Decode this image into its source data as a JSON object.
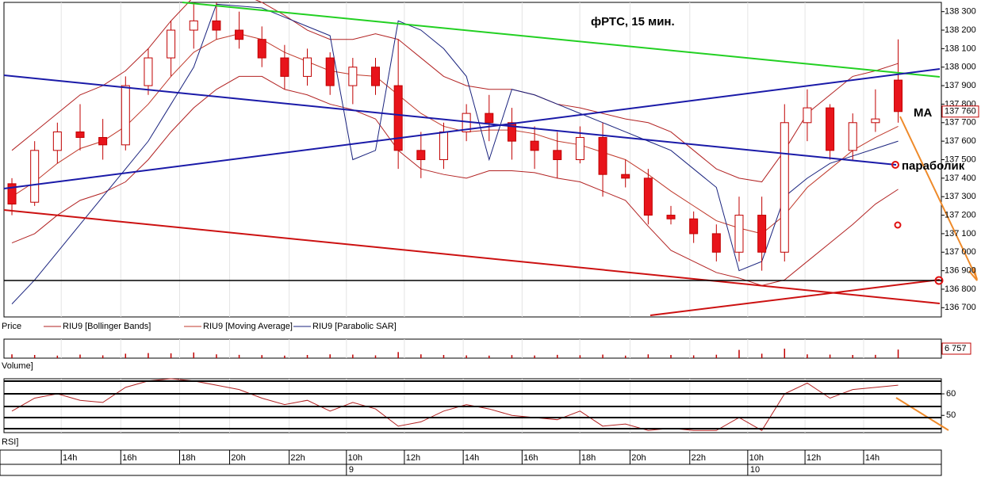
{
  "chart_data": [
    {
      "type": "candlestick",
      "title": "фРТС,  15 мин.",
      "ylabel": "Price",
      "x": [
        0,
        1,
        2,
        3,
        4,
        5,
        6,
        7,
        8,
        9,
        10,
        11,
        12,
        13,
        14,
        15,
        16,
        17,
        18,
        19,
        20,
        21,
        22,
        23,
        24,
        25,
        26,
        27,
        28,
        29,
        30,
        31,
        32,
        33,
        34,
        35,
        36,
        37,
        38,
        39
      ],
      "open": [
        137370,
        137270,
        137550,
        137650,
        137620,
        137580,
        137900,
        138050,
        138200,
        138250,
        138200,
        138150,
        138050,
        137950,
        138050,
        137900,
        138000,
        137900,
        137550,
        137500,
        137650,
        137750,
        137700,
        137600,
        137550,
        137500,
        137620,
        137420,
        137400,
        137200,
        137180,
        137100,
        137000,
        137200,
        137000,
        137700,
        137780,
        137550,
        137700,
        137930
      ],
      "high": [
        137400,
        137600,
        137700,
        137800,
        137720,
        137950,
        138100,
        138250,
        138350,
        138350,
        138300,
        138220,
        138120,
        138100,
        138080,
        138050,
        138050,
        138150,
        137650,
        137700,
        137800,
        137850,
        137780,
        137680,
        137650,
        137680,
        137700,
        137500,
        137450,
        137250,
        137220,
        137150,
        137300,
        137300,
        137800,
        137880,
        137800,
        137750,
        137880,
        138150
      ],
      "low": [
        137200,
        137250,
        137480,
        137550,
        137500,
        137550,
        137850,
        137950,
        138100,
        138150,
        138100,
        138000,
        137880,
        137900,
        137850,
        137800,
        137850,
        137450,
        137400,
        137450,
        137600,
        137600,
        137500,
        137450,
        137400,
        137480,
        137300,
        137350,
        137150,
        137150,
        137050,
        136950,
        136950,
        136900,
        136950,
        137600,
        137500,
        137500,
        137650,
        137700
      ],
      "close": [
        137260,
        137550,
        137650,
        137620,
        137580,
        137900,
        138050,
        138200,
        138250,
        138200,
        138150,
        138050,
        137950,
        138050,
        137900,
        138000,
        137900,
        137550,
        137500,
        137650,
        137750,
        137700,
        137600,
        137550,
        137500,
        137620,
        137420,
        137400,
        137200,
        137180,
        137100,
        137000,
        137200,
        137000,
        137700,
        137780,
        137550,
        137700,
        137720,
        137760
      ],
      "up_color": "#ffffff",
      "down_color": "#e8141b",
      "edge_color": "#c00000",
      "series": [
        {
          "name": "RIU9 [Bollinger Bands]",
          "color": "#b22222",
          "upper": [
            137550,
            137650,
            137750,
            137850,
            137900,
            137980,
            138100,
            138250,
            138380,
            138420,
            138400,
            138350,
            138280,
            138200,
            138150,
            138150,
            138180,
            138150,
            138050,
            137950,
            137900,
            137880,
            137880,
            137850,
            137800,
            137780,
            137750,
            137720,
            137700,
            137650,
            137550,
            137450,
            137400,
            137380,
            137550,
            137750,
            137850,
            137950,
            137980,
            138020
          ],
          "lower": [
            137050,
            137100,
            137200,
            137280,
            137320,
            137380,
            137500,
            137650,
            137780,
            137880,
            137950,
            137950,
            137880,
            137850,
            137800,
            137770,
            137720,
            137550,
            137450,
            137420,
            137400,
            137440,
            137440,
            137430,
            137400,
            137380,
            137330,
            137280,
            137140,
            137010,
            136950,
            136890,
            136860,
            136820,
            136850,
            136950,
            137050,
            137150,
            137260,
            137340
          ]
        },
        {
          "name": "RIU9 [Moving Average]",
          "color": "#c0392b",
          "values": [
            137300,
            137380,
            137480,
            137560,
            137600,
            137680,
            137800,
            137950,
            138080,
            138150,
            138180,
            138150,
            138080,
            138030,
            137980,
            137960,
            137950,
            137850,
            137750,
            137680,
            137650,
            137660,
            137660,
            137640,
            137600,
            137580,
            137540,
            137500,
            137420,
            137330,
            137250,
            137170,
            137130,
            137100,
            137200,
            137350,
            137450,
            137550,
            137620,
            137680
          ]
        },
        {
          "name": "RIU9 [Parabolic SAR]",
          "color": "#1a237e",
          "values": [
            136720,
            136850,
            137000,
            137150,
            137300,
            137450,
            137600,
            137800,
            138000,
            138340,
            138330,
            138320,
            138270,
            138220,
            138170,
            137500,
            137550,
            138250,
            138200,
            138100,
            137950,
            137500,
            137880,
            137850,
            137800,
            137750,
            137700,
            137650,
            137600,
            137550,
            137450,
            137350,
            136900,
            136950,
            137300,
            137400,
            137480,
            137520,
            137560,
            137600
          ]
        }
      ],
      "last_value": {
        "value": 137760,
        "label": "137 760"
      },
      "ylim": [
        136650,
        138350
      ],
      "yticks": [
        {
          "value": 138300,
          "label": "138 300"
        },
        {
          "value": 138200,
          "label": "138 200"
        },
        {
          "value": 138100,
          "label": "138 100"
        },
        {
          "value": 138000,
          "label": "138 000"
        },
        {
          "value": 137900,
          "label": "137 900"
        },
        {
          "value": 137800,
          "label": "137 800"
        },
        {
          "value": 137700,
          "label": "137 700"
        },
        {
          "value": 137600,
          "label": "137 600"
        },
        {
          "value": 137500,
          "label": "137 500"
        },
        {
          "value": 137400,
          "label": "137 400"
        },
        {
          "value": 137300,
          "label": "137 300"
        },
        {
          "value": 137200,
          "label": "137 200"
        },
        {
          "value": 137100,
          "label": "137 100"
        },
        {
          "value": 137000,
          "label": "137 000"
        },
        {
          "value": 136900,
          "label": "136 900"
        },
        {
          "value": 136800,
          "label": "136 800"
        },
        {
          "value": 136700,
          "label": "136 700"
        }
      ],
      "xlim": [
        -0.35,
        40.9
      ],
      "xticks": [
        {
          "value": 2.17,
          "label": "14h"
        },
        {
          "value": 4.79,
          "label": "16h"
        },
        {
          "value": 7.38,
          "label": "18h"
        },
        {
          "value": 9.58,
          "label": "20h"
        },
        {
          "value": 12.2,
          "label": "22h"
        },
        {
          "value": 14.72,
          "label": "10h"
        },
        {
          "value": 17.27,
          "label": "12h"
        },
        {
          "value": 19.86,
          "label": "14h"
        },
        {
          "value": 22.45,
          "label": "16h"
        },
        {
          "value": 24.99,
          "label": "18h"
        },
        {
          "value": 27.2,
          "label": "20h"
        },
        {
          "value": 29.83,
          "label": "22h"
        },
        {
          "value": 32.38,
          "label": "10h"
        },
        {
          "value": 34.9,
          "label": "12h"
        },
        {
          "value": 37.48,
          "label": "14h"
        }
      ],
      "date_ticks": [
        {
          "value": 14.72,
          "label": "9"
        },
        {
          "value": 32.38,
          "label": "10"
        }
      ],
      "annotations": [
        "MA",
        "параболик"
      ],
      "grid": true
    },
    {
      "type": "volume",
      "ylabel": "Volume]",
      "color": "#c00000",
      "values": [
        3000,
        2500,
        2000,
        2800,
        2200,
        3500,
        4000,
        3800,
        4500,
        3000,
        2600,
        2400,
        2000,
        2500,
        3000,
        2800,
        2200,
        4800,
        3000,
        2500,
        2200,
        2000,
        2400,
        2100,
        2600,
        2300,
        2800,
        2000,
        3000,
        2500,
        2200,
        2700,
        6500,
        3500,
        7500,
        3000,
        2800,
        2500,
        2600,
        6757
      ],
      "last_value": {
        "value": 6757,
        "label": "6 757"
      },
      "ylim": [
        0,
        15000
      ]
    },
    {
      "type": "line",
      "ylabel": "RSI]",
      "color": "#b22222",
      "values": [
        52,
        58,
        60,
        57,
        56,
        63,
        66,
        67,
        66,
        64,
        62,
        58,
        55,
        57,
        52,
        56,
        53,
        45,
        47,
        52,
        55,
        53,
        50,
        49,
        48,
        52,
        45,
        46,
        43,
        44,
        43,
        43,
        49,
        43,
        60,
        65,
        58,
        62,
        63,
        64
      ],
      "ylim": [
        42,
        67
      ],
      "yticks": [
        60,
        50
      ]
    }
  ]
}
